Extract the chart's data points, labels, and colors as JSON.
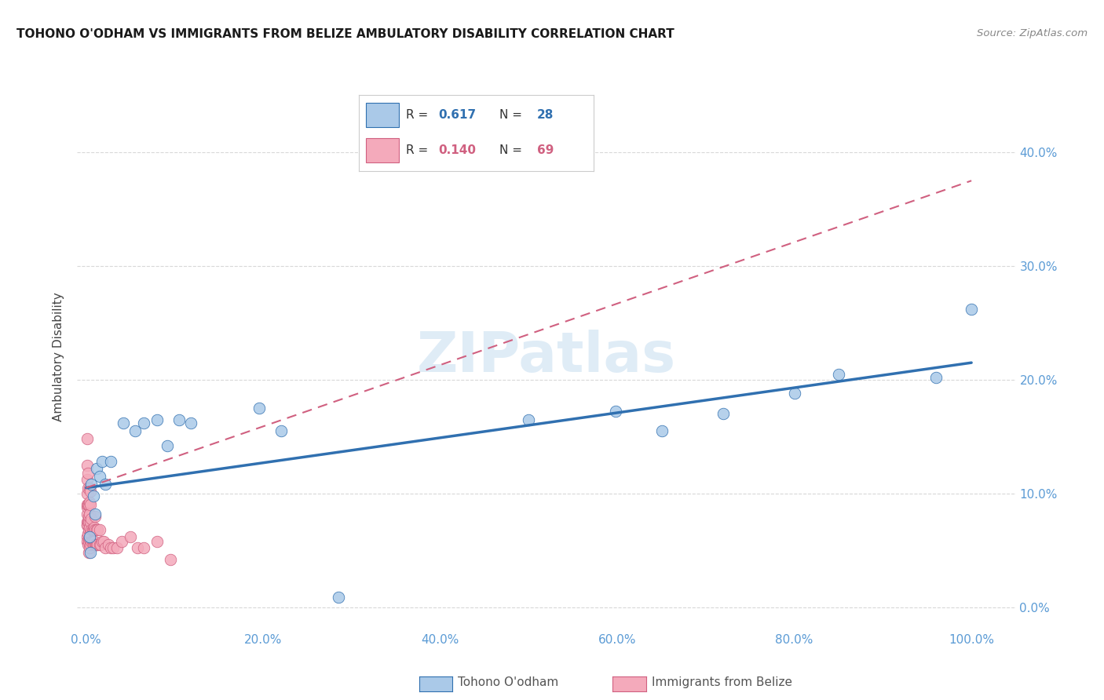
{
  "title": "TOHONO O'ODHAM VS IMMIGRANTS FROM BELIZE AMBULATORY DISABILITY CORRELATION CHART",
  "source": "Source: ZipAtlas.com",
  "ylabel": "Ambulatory Disability",
  "label1": "Tohono O'odham",
  "label2": "Immigrants from Belize",
  "color1": "#aac9e8",
  "color2": "#f4aabb",
  "line_color1": "#3070b0",
  "line_color2": "#d06080",
  "background_color": "#ffffff",
  "grid_color": "#d8d8d8",
  "tick_color": "#5b9bd5",
  "blue_line_x0": 0.0,
  "blue_line_y0": 0.105,
  "blue_line_x1": 1.0,
  "blue_line_y1": 0.215,
  "pink_line_x0": 0.0,
  "pink_line_y0": 0.105,
  "pink_line_x1": 1.0,
  "pink_line_y1": 0.375,
  "blue_points_x": [
    0.004,
    0.005,
    0.006,
    0.008,
    0.01,
    0.012,
    0.015,
    0.018,
    0.022,
    0.028,
    0.042,
    0.055,
    0.065,
    0.08,
    0.092,
    0.105,
    0.118,
    0.195,
    0.22,
    0.285,
    0.5,
    0.598,
    0.65,
    0.72,
    0.8,
    0.85,
    0.96,
    1.0
  ],
  "blue_points_y": [
    0.062,
    0.048,
    0.108,
    0.098,
    0.082,
    0.122,
    0.115,
    0.128,
    0.108,
    0.128,
    0.162,
    0.155,
    0.162,
    0.165,
    0.142,
    0.165,
    0.162,
    0.175,
    0.155,
    0.009,
    0.165,
    0.172,
    0.155,
    0.17,
    0.188,
    0.205,
    0.202,
    0.262
  ],
  "pink_points_x": [
    0.0008,
    0.0009,
    0.001,
    0.001,
    0.001,
    0.001,
    0.001,
    0.001,
    0.001,
    0.0015,
    0.0015,
    0.0015,
    0.002,
    0.002,
    0.002,
    0.002,
    0.002,
    0.002,
    0.0025,
    0.0025,
    0.003,
    0.003,
    0.003,
    0.003,
    0.003,
    0.004,
    0.004,
    0.004,
    0.004,
    0.004,
    0.004,
    0.005,
    0.005,
    0.005,
    0.005,
    0.005,
    0.006,
    0.006,
    0.006,
    0.007,
    0.007,
    0.008,
    0.008,
    0.009,
    0.009,
    0.01,
    0.01,
    0.01,
    0.011,
    0.012,
    0.012,
    0.013,
    0.013,
    0.015,
    0.015,
    0.016,
    0.018,
    0.02,
    0.022,
    0.025,
    0.028,
    0.03,
    0.035,
    0.04,
    0.05,
    0.058,
    0.065,
    0.08,
    0.095
  ],
  "pink_points_y": [
    0.072,
    0.082,
    0.062,
    0.075,
    0.088,
    0.1,
    0.112,
    0.125,
    0.148,
    0.058,
    0.072,
    0.09,
    0.055,
    0.065,
    0.075,
    0.09,
    0.105,
    0.118,
    0.06,
    0.075,
    0.048,
    0.058,
    0.068,
    0.08,
    0.09,
    0.052,
    0.06,
    0.07,
    0.082,
    0.092,
    0.105,
    0.055,
    0.065,
    0.075,
    0.09,
    0.102,
    0.058,
    0.068,
    0.078,
    0.058,
    0.068,
    0.055,
    0.068,
    0.058,
    0.07,
    0.055,
    0.068,
    0.08,
    0.055,
    0.055,
    0.068,
    0.055,
    0.068,
    0.055,
    0.068,
    0.055,
    0.058,
    0.058,
    0.052,
    0.055,
    0.052,
    0.052,
    0.052,
    0.058,
    0.062,
    0.052,
    0.052,
    0.058,
    0.042
  ],
  "xlim": [
    -0.01,
    1.05
  ],
  "ylim": [
    -0.02,
    0.46
  ],
  "x_ticks": [
    0.0,
    0.2,
    0.4,
    0.6,
    0.8,
    1.0
  ],
  "y_ticks": [
    0.0,
    0.1,
    0.2,
    0.3,
    0.4
  ],
  "legend_r1": "0.617",
  "legend_n1": "28",
  "legend_r2": "0.140",
  "legend_n2": "69"
}
